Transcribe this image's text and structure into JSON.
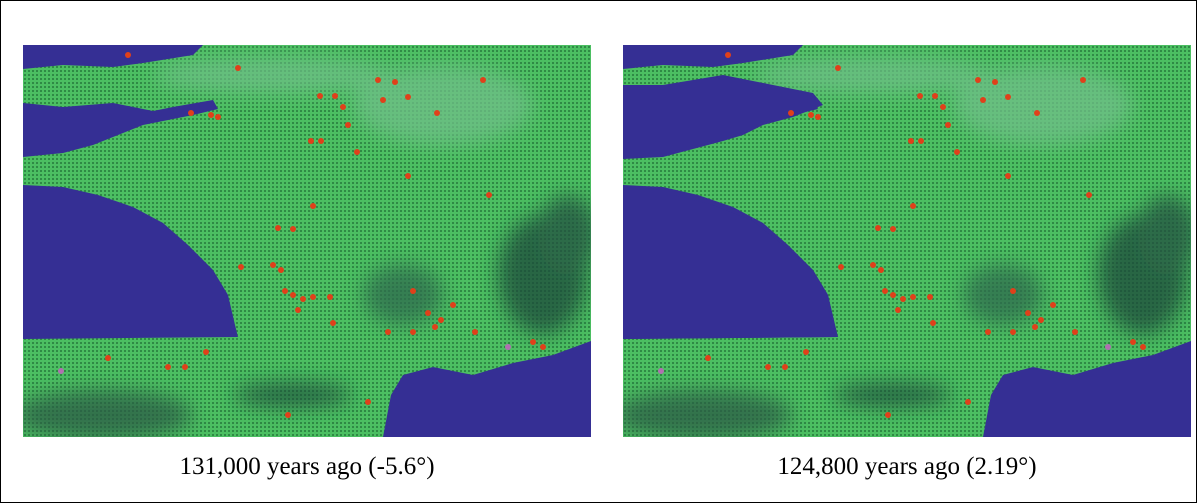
{
  "captions": [
    "131,000 years ago (-5.6°)",
    "124,800 years ago (2.19°)"
  ]
}
